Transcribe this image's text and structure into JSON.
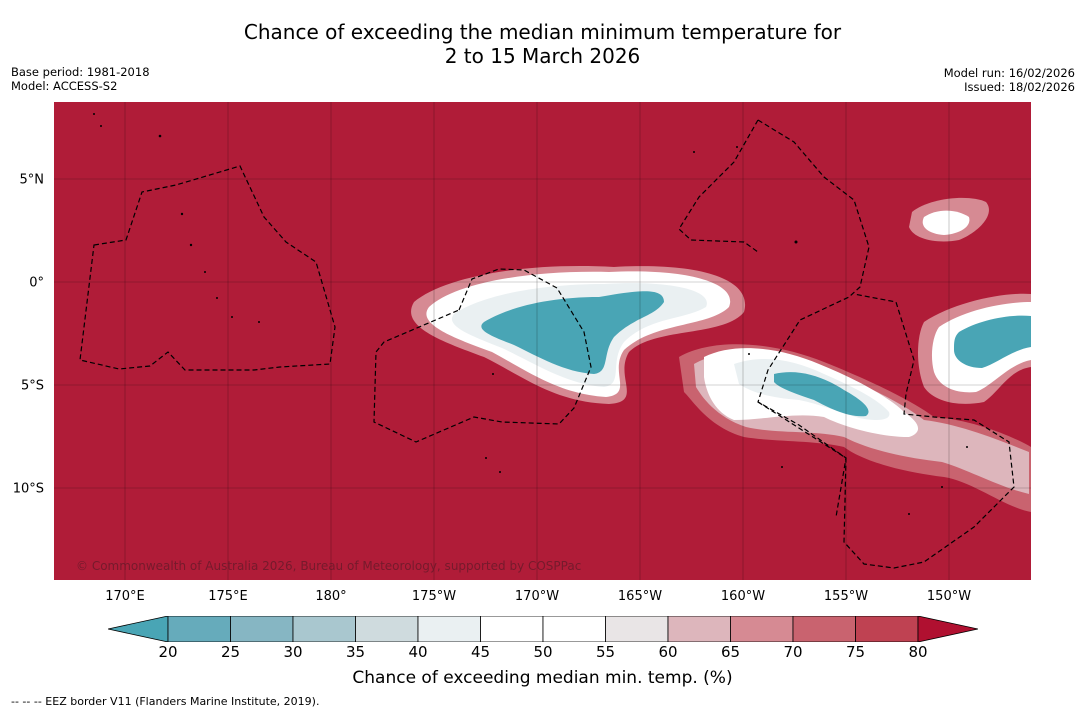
{
  "title": {
    "line1": "Chance of exceeding the median minimum temperature for",
    "line2": "2 to 15 March 2026"
  },
  "meta_left": {
    "base_period": "Base period: 1981-2018",
    "model": "Model: ACCESS-S2"
  },
  "meta_right": {
    "model_run": "Model run: 16/02/2026",
    "issued": "Issued: 18/02/2026"
  },
  "map": {
    "background_color": "#b01c38",
    "copyright": "© Commonwealth of Australia 2026, Bureau of Meteorology, supported by COSPPac",
    "lat_labels": [
      "5°N",
      "0°",
      "5°S",
      "10°S"
    ],
    "lon_labels": [
      "170°E",
      "175°E",
      "180°",
      "175°W",
      "170°W",
      "165°W",
      "160°W",
      "155°W",
      "150°W"
    ]
  },
  "colorbar": {
    "ticks": [
      "20",
      "25",
      "30",
      "35",
      "40",
      "45",
      "50",
      "55",
      "60",
      "65",
      "70",
      "75",
      "80"
    ],
    "colors": [
      "#66abbb",
      "#86b6c3",
      "#a9c7cf",
      "#cfdbde",
      "#eaf0f2",
      "#ffffff",
      "#ffffff",
      "#e9e5e6",
      "#ddb6bc",
      "#d68a93",
      "#c9636f",
      "#bf4252"
    ],
    "low_extend_color": "#49a5b5",
    "high_extend_color": "#b01030",
    "label": "Chance of exceeding median min. temp. (%)"
  },
  "footnote": "--  --  -- EEZ border V11 (Flanders Marine Institute, 2019)."
}
